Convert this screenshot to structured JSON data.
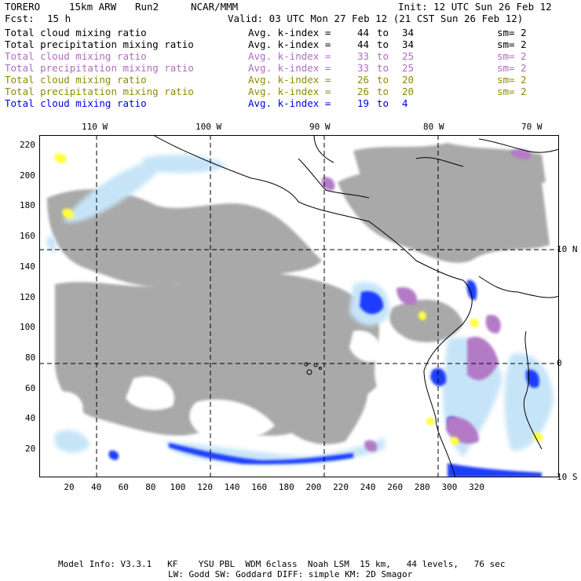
{
  "header": {
    "model": "TORERO",
    "resolution": "15km ARW",
    "run": "Run2",
    "org": "NCAR/MMM",
    "init": "Init: 12 UTC Sun 26 Feb 12",
    "fcst_label": "Fcst:",
    "fcst_value": "15 h",
    "valid": "Valid: 03 UTC Mon 27 Feb 12 (21 CST Sun 26 Feb 12)"
  },
  "legend": [
    {
      "name": "Total cloud mixing ratio",
      "kidx": "Avg. k-index =",
      "from": "44",
      "to_word": "to",
      "to": "34",
      "sm": "sm= 2",
      "color": "#000000"
    },
    {
      "name": "Total precipitation mixing ratio",
      "kidx": "Avg. k-index =",
      "from": "44",
      "to_word": "to",
      "to": "34",
      "sm": "sm= 2",
      "color": "#000000"
    },
    {
      "name": "Total cloud mixing ratio",
      "kidx": "Avg. k-index =",
      "from": "33",
      "to_word": "to",
      "to": "25",
      "sm": "sm= 2",
      "color": "#b06cc0"
    },
    {
      "name": "Total precipitation mixing ratio",
      "kidx": "Avg. k-index =",
      "from": "33",
      "to_word": "to",
      "to": "25",
      "sm": "sm= 2",
      "color": "#b06cc0"
    },
    {
      "name": "Total cloud mixing ratio",
      "kidx": "Avg. k-index =",
      "from": "26",
      "to_word": "to",
      "to": "20",
      "sm": "sm= 2",
      "color": "#8c8c00"
    },
    {
      "name": "Total precipitation mixing ratio",
      "kidx": "Avg. k-index =",
      "from": "26",
      "to_word": "to",
      "to": "20",
      "sm": "sm= 2",
      "color": "#8c8c00"
    },
    {
      "name": "Total cloud mixing ratio",
      "kidx": "Avg. k-index =",
      "from": "19",
      "to_word": "to",
      "to": "4",
      "sm": "",
      "color": "#0000e0"
    }
  ],
  "axes": {
    "top_lon": [
      "110 W",
      "100 W",
      "90 W",
      "80 W",
      "70 W"
    ],
    "right_lat": [
      "10 N",
      "0",
      "10 S"
    ],
    "x_ticks": [
      "20",
      "40",
      "60",
      "80",
      "100",
      "120",
      "140",
      "160",
      "180",
      "200",
      "220",
      "240",
      "260",
      "280",
      "300",
      "320"
    ],
    "y_ticks": [
      "20",
      "40",
      "60",
      "80",
      "100",
      "120",
      "140",
      "160",
      "180",
      "200",
      "220"
    ]
  },
  "footer": {
    "line1": "Model Info: V3.3.1   KF    YSU PBL  WDM 6class  Noah LSM  15 km,   44 levels,   76 sec",
    "line2": "LW: Godd SW: Goddard DIFF: simple KM: 2D Smagor"
  },
  "colors": {
    "cloud_gray": "#a9a9a9",
    "precip_light_blue": "#c6e4f8",
    "precip_blue": "#1e3cff",
    "purple": "#b37ac6",
    "yellow": "#ffff40",
    "coast": "#000000"
  }
}
